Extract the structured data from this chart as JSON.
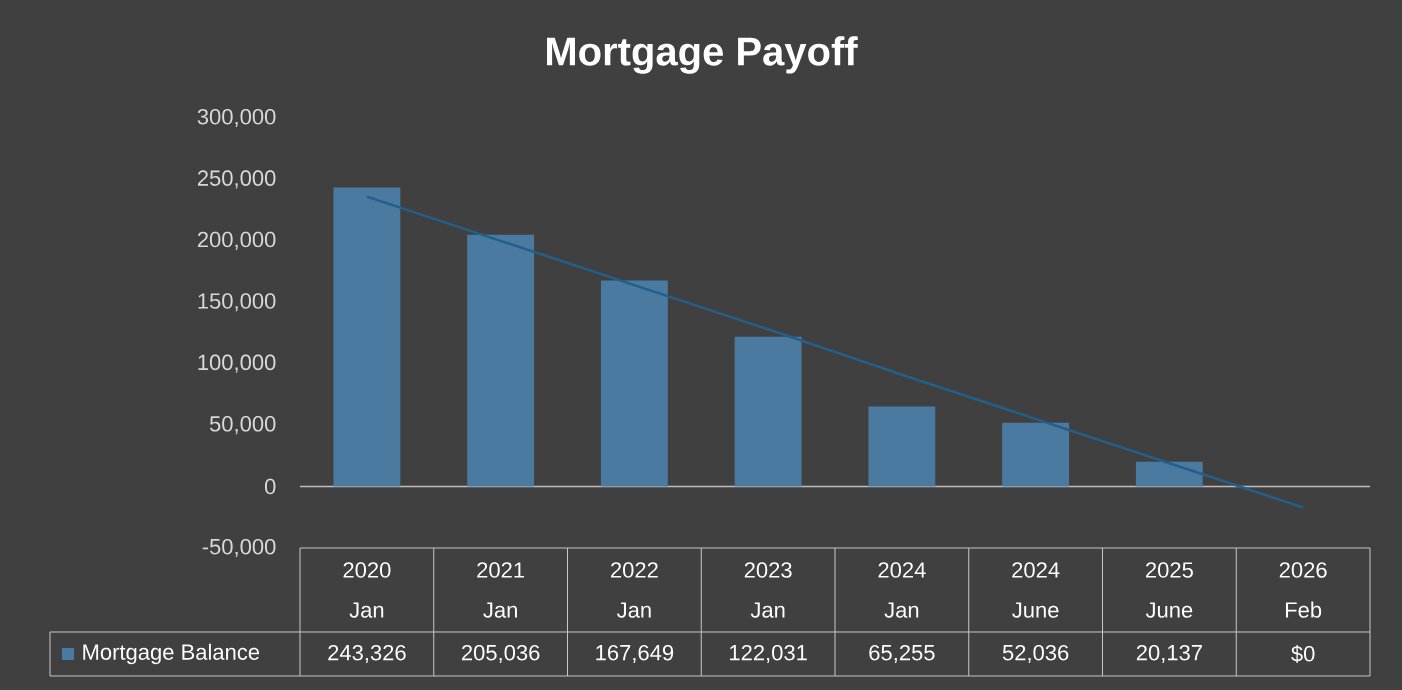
{
  "chart_data": {
    "type": "bar",
    "title": "Mortgage Payoff",
    "categories": [
      "2020 Jan",
      "2021 Jan",
      "2022 Jan",
      "2023 Jan",
      "2024 Jan",
      "2024 June",
      "2025 June",
      "2026 Feb"
    ],
    "series": [
      {
        "name": "Mortgage Balance",
        "color": "#4a7aa0",
        "values": [
          243326,
          205036,
          167649,
          122031,
          65255,
          52036,
          20137,
          0
        ],
        "value_labels": [
          "243,326",
          "205,036",
          "167,649",
          "122,031",
          "65,255",
          "52,036",
          "20,137",
          "$0"
        ]
      },
      {
        "type": "line",
        "color": "#245f8a",
        "values": [
          236000,
          200000,
          164000,
          128000,
          91000,
          55000,
          19000,
          -17000
        ]
      }
    ],
    "ylim": [
      -50000,
      300000
    ],
    "yticks": [
      {
        "value": -50000,
        "label": "-50,000"
      },
      0,
      {
        "value": 50000,
        "label": "50,000"
      },
      {
        "value": 100000,
        "label": "100,000"
      },
      {
        "value": 150000,
        "label": "150,000"
      },
      {
        "value": 200000,
        "label": "200,000"
      },
      {
        "value": 250000,
        "label": "250,000"
      },
      {
        "value": 300000,
        "label": "300,000"
      }
    ]
  }
}
